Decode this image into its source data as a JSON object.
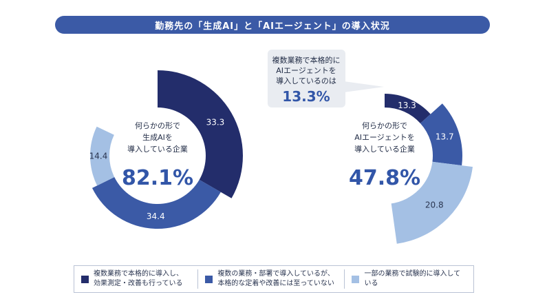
{
  "title": "勤務先の「生成AI」と「AIエージェント」の導入状況",
  "colors": {
    "dark": "#232d6b",
    "mid": "#3b5aa6",
    "light": "#a4c0e4",
    "accent": "#3256a8"
  },
  "chart_data": [
    {
      "type": "pie",
      "donut": true,
      "center_lines": [
        "何らかの形で",
        "生成AIを",
        "導入している企業"
      ],
      "center_value": "82.1%",
      "slices": [
        {
          "label": "33.3",
          "value": 33.3,
          "category": "dark"
        },
        {
          "label": "34.4",
          "value": 34.4,
          "category": "mid"
        },
        {
          "label": "14.4",
          "value": 14.4,
          "category": "light"
        }
      ]
    },
    {
      "type": "pie",
      "donut": true,
      "center_lines": [
        "何らかの形で",
        "AIエージェントを",
        "導入している企業"
      ],
      "center_value": "47.8%",
      "slices": [
        {
          "label": "13.3",
          "value": 13.3,
          "category": "dark"
        },
        {
          "label": "13.7",
          "value": 13.7,
          "category": "mid"
        },
        {
          "label": "20.8",
          "value": 20.8,
          "category": "light"
        }
      ],
      "callout": {
        "lines": [
          "複数業務で本格的に",
          "AIエージェントを",
          "導入しているのは"
        ],
        "value": "13.3%"
      }
    }
  ],
  "legend": [
    {
      "category": "dark",
      "lines": [
        "複数業務で本格的に導入し、",
        "効果測定・改善も行っている"
      ]
    },
    {
      "category": "mid",
      "lines": [
        "複数の業務・部署で導入しているが、",
        "本格的な定着や改善には至っていない"
      ]
    },
    {
      "category": "light",
      "lines": [
        "一部の業務で試験的に導入している"
      ]
    }
  ]
}
